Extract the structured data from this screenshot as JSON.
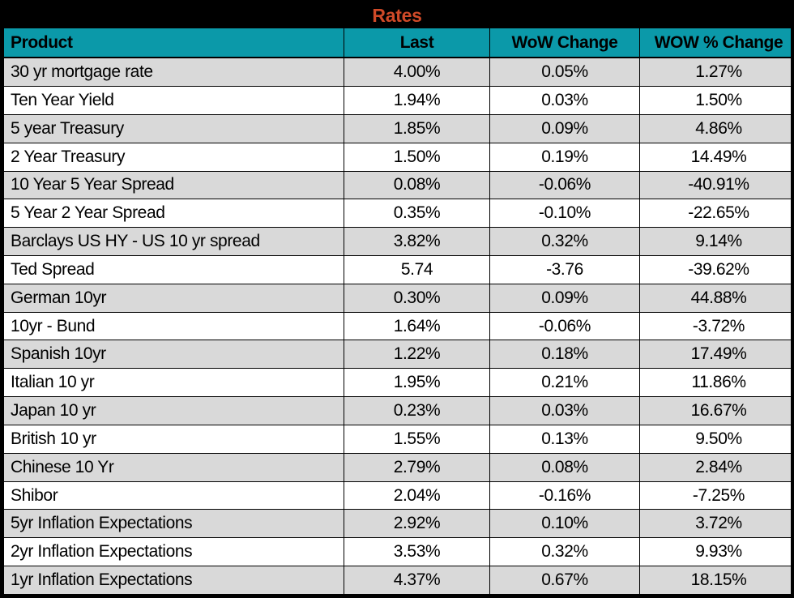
{
  "chart_data": {
    "type": "table",
    "title": "Rates",
    "columns": [
      "Product",
      "Last",
      "WoW Change",
      "WOW % Change"
    ],
    "rows": [
      [
        "30 yr mortgage rate",
        "4.00%",
        "0.05%",
        "1.27%"
      ],
      [
        "Ten Year Yield",
        "1.94%",
        "0.03%",
        "1.50%"
      ],
      [
        "5 year Treasury",
        "1.85%",
        "0.09%",
        "4.86%"
      ],
      [
        "2 Year Treasury",
        "1.50%",
        "0.19%",
        "14.49%"
      ],
      [
        "10 Year 5 Year Spread",
        "0.08%",
        "-0.06%",
        "-40.91%"
      ],
      [
        "5 Year 2 Year Spread",
        "0.35%",
        "-0.10%",
        "-22.65%"
      ],
      [
        "Barclays US HY - US 10 yr spread",
        "3.82%",
        "0.32%",
        "9.14%"
      ],
      [
        "Ted Spread",
        "5.74",
        "-3.76",
        "-39.62%"
      ],
      [
        "German 10yr",
        "0.30%",
        "0.09%",
        "44.88%"
      ],
      [
        "10yr - Bund",
        "1.64%",
        "-0.06%",
        "-3.72%"
      ],
      [
        "Spanish 10yr",
        "1.22%",
        "0.18%",
        "17.49%"
      ],
      [
        "Italian 10 yr",
        "1.95%",
        "0.21%",
        "11.86%"
      ],
      [
        "Japan 10 yr",
        "0.23%",
        "0.03%",
        "16.67%"
      ],
      [
        "British 10 yr",
        "1.55%",
        "0.13%",
        "9.50%"
      ],
      [
        "Chinese 10 Yr",
        "2.79%",
        "0.08%",
        "2.84%"
      ],
      [
        "Shibor",
        "2.04%",
        "-0.16%",
        "-7.25%"
      ],
      [
        "5yr Inflation Expectations",
        "2.92%",
        "0.10%",
        "3.72%"
      ],
      [
        "2yr Inflation Expectations",
        "3.53%",
        "0.32%",
        "9.93%"
      ],
      [
        "1yr Inflation Expectations",
        "4.37%",
        "0.67%",
        "18.15%"
      ]
    ],
    "layout_hints": {
      "title_position": "top-center",
      "alternating_rows": true,
      "first_data_row_shaded": true,
      "value_alignment": "center",
      "product_alignment": "left"
    }
  },
  "colors": {
    "title_bg": "#000000",
    "title_text": "#D04A28",
    "header_bg": "#0B99A9",
    "header_text": "#000000",
    "row_shaded_bg": "#D9D9D9",
    "row_plain_bg": "#FFFFFF",
    "cell_text": "#000000",
    "border": "#000000"
  }
}
